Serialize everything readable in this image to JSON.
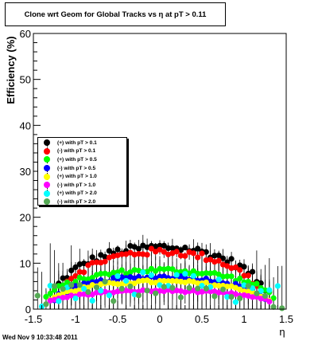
{
  "title": "Clone wrt Geom for Global Tracks vs    η at pT > 0.11",
  "footer": "Wed Nov  9 10:33:48 2011",
  "chart_data": {
    "type": "scatter",
    "title": "Clone wrt Geom for Global Tracks vs    η at pT > 0.11",
    "xlabel": "η",
    "ylabel": "Efficiency (%)",
    "xlim": [
      -1.5,
      1.5
    ],
    "ylim": [
      0,
      60
    ],
    "xticks": [
      "-1.5",
      "-1",
      "-0.5",
      "0",
      "0.5",
      "1",
      "1.5"
    ],
    "yticks": [
      "0",
      "10",
      "20",
      "30",
      "40",
      "50",
      "60"
    ],
    "grid": false,
    "legend_position": "middle-left",
    "series": [
      {
        "name": "(+) with pT > 0.1",
        "color": "#000000",
        "profile": "dome",
        "peak": 13.5,
        "width": 1.3,
        "floor": 0.3,
        "err": 1.5
      },
      {
        "name": "(-) with pT > 0.1",
        "color": "#ff0000",
        "profile": "dome",
        "peak": 12.5,
        "width": 1.25,
        "floor": 0.3,
        "err": 1.5
      },
      {
        "name": "(+) with pT > 0.5",
        "color": "#00ff00",
        "profile": "dome",
        "peak": 8.5,
        "width": 1.4,
        "floor": 0.5,
        "err": 2.5
      },
      {
        "name": "(-) with pT > 0.5",
        "color": "#0000ff",
        "profile": "dome",
        "peak": 7.0,
        "width": 1.3,
        "floor": 0.5,
        "err": 2.5
      },
      {
        "name": "(+) with pT > 1.0",
        "color": "#ffff00",
        "profile": "dome",
        "peak": 6.0,
        "width": 1.35,
        "floor": 0.5,
        "err": 3.5
      },
      {
        "name": "(-) with pT > 1.0",
        "color": "#ff00ff",
        "profile": "dome",
        "peak": 4.0,
        "width": 1.35,
        "floor": 0.8,
        "err": 3.5
      },
      {
        "name": "(+) with pT > 2.0",
        "color": "#00ffff",
        "profile": "sparse",
        "base": 5.0,
        "scatter": 5.5,
        "err": 7.0
      },
      {
        "name": "(-) with pT > 2.0",
        "color": "#55aa55",
        "profile": "sparse",
        "base": 4.5,
        "scatter": 5.0,
        "err": 7.0
      }
    ]
  }
}
